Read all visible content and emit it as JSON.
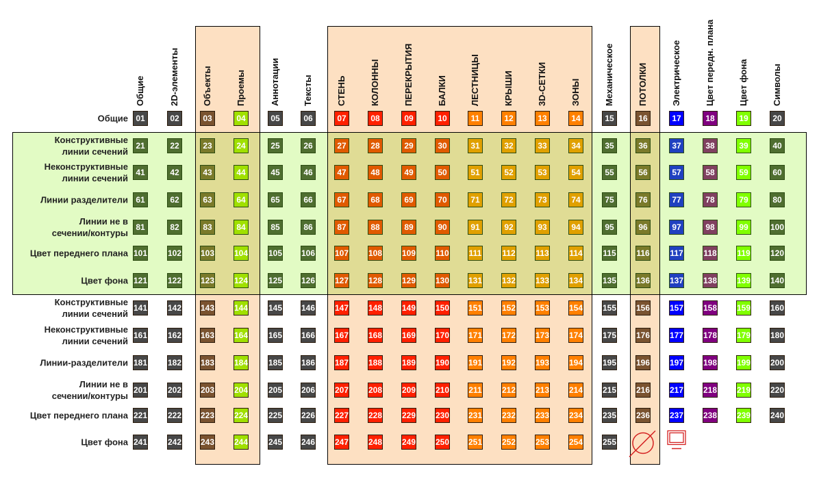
{
  "columns": [
    "Общие",
    "2D-элементы",
    "Объекты",
    "Проемы",
    "Аннотации",
    "Тексты",
    "СТЕНЬ",
    "КОЛОННЫ",
    "ПЕРЕКРЫТИЯ",
    "БАЛКИ",
    "ЛЕСТНИЦЫ",
    "КРЫШИ",
    "3D-СЕТКИ",
    "ЗОНЫ",
    "Механическое",
    "ПОТОЛКИ",
    "Электрическое",
    "Цвет передн. плана",
    "Цвет фона",
    "Символы"
  ],
  "groups": [
    {
      "columns": [
        "Объекты",
        "Проемы"
      ]
    },
    {
      "columns": [
        "СТЕНЬ",
        "КОЛОННЫ",
        "ПЕРЕКРЫТИЯ",
        "БАЛКИ",
        "ЛЕСТНИЦЫ",
        "КРЫШИ",
        "3D-СЕТКИ",
        "ЗОНЫ"
      ]
    },
    {
      "columns": [
        "ПОТОЛКИ"
      ]
    }
  ],
  "colors": {
    "group_bg": "#fde0c2",
    "zone_bg": "#e2fbc4",
    "normal": [
      "#474747",
      "#474747",
      "#7a5330",
      "#a0e000",
      "#474747",
      "#474747",
      "#ff2000",
      "#ff2000",
      "#ff2000",
      "#ff2000",
      "#ff8000",
      "#ff8000",
      "#ff8000",
      "#ff8000",
      "#474747",
      "#7a5330",
      "#0000ff",
      "#800080",
      "#80ff00",
      "#474747"
    ],
    "highlighted": [
      "#4f6e30",
      "#4f6e30",
      "#7a7a2a",
      "#a0e000",
      "#4f6e30",
      "#4f6e30",
      "#e05a00",
      "#e05a00",
      "#e05a00",
      "#e05a00",
      "#e0a000",
      "#e0a000",
      "#e0a000",
      "#e0a000",
      "#4f6e30",
      "#7a7a2a",
      "#2040c0",
      "#804060",
      "#80ff00",
      "#4f6e30"
    ]
  },
  "rows": [
    {
      "label": "Общие",
      "highlighted": false,
      "cells": [
        "01",
        "02",
        "03",
        "04",
        "05",
        "06",
        "07",
        "08",
        "09",
        "10",
        "11",
        "12",
        "13",
        "14",
        "15",
        "16",
        "17",
        "18",
        "19",
        "20"
      ]
    },
    {
      "label": "Конструктивные\nлинии сечений",
      "highlighted": true,
      "cells": [
        "21",
        "22",
        "23",
        "24",
        "25",
        "26",
        "27",
        "28",
        "29",
        "30",
        "31",
        "32",
        "33",
        "34",
        "35",
        "36",
        "37",
        "38",
        "39",
        "40"
      ]
    },
    {
      "label": "Неконструктивные\nлинии сечений",
      "highlighted": true,
      "cells": [
        "41",
        "42",
        "43",
        "44",
        "45",
        "46",
        "47",
        "48",
        "49",
        "50",
        "51",
        "52",
        "53",
        "54",
        "55",
        "56",
        "57",
        "58",
        "59",
        "60"
      ]
    },
    {
      "label": "Линии разделители",
      "highlighted": true,
      "cells": [
        "61",
        "62",
        "63",
        "64",
        "65",
        "66",
        "67",
        "68",
        "69",
        "70",
        "71",
        "72",
        "73",
        "74",
        "75",
        "76",
        "77",
        "78",
        "79",
        "80"
      ]
    },
    {
      "label": "Линии не в\nсечении/контуры",
      "highlighted": true,
      "cells": [
        "81",
        "82",
        "83",
        "84",
        "85",
        "86",
        "87",
        "88",
        "89",
        "90",
        "91",
        "92",
        "93",
        "94",
        "95",
        "96",
        "97",
        "98",
        "99",
        "100"
      ]
    },
    {
      "label": "Цвет переднего плана",
      "highlighted": true,
      "cells": [
        "101",
        "102",
        "103",
        "104",
        "105",
        "106",
        "107",
        "108",
        "109",
        "110",
        "111",
        "112",
        "113",
        "114",
        "115",
        "116",
        "117",
        "118",
        "119",
        "120"
      ]
    },
    {
      "label": "Цвет фона",
      "highlighted": true,
      "cells": [
        "121",
        "122",
        "123",
        "124",
        "125",
        "126",
        "127",
        "128",
        "129",
        "130",
        "131",
        "132",
        "133",
        "134",
        "135",
        "136",
        "137",
        "138",
        "139",
        "140"
      ]
    },
    {
      "label": "Конструктивные\nлинии сечений",
      "highlighted": false,
      "cells": [
        "141",
        "142",
        "143",
        "144",
        "145",
        "146",
        "147",
        "148",
        "149",
        "150",
        "151",
        "152",
        "153",
        "154",
        "155",
        "156",
        "157",
        "158",
        "159",
        "160"
      ]
    },
    {
      "label": "Неконструктивные\nлинии сечений",
      "highlighted": false,
      "cells": [
        "161",
        "162",
        "163",
        "164",
        "165",
        "166",
        "167",
        "168",
        "169",
        "170",
        "171",
        "172",
        "173",
        "174",
        "175",
        "176",
        "177",
        "178",
        "179",
        "180"
      ]
    },
    {
      "label": "Линии-разделители",
      "highlighted": false,
      "cells": [
        "181",
        "182",
        "183",
        "184",
        "185",
        "186",
        "187",
        "188",
        "189",
        "190",
        "191",
        "192",
        "193",
        "194",
        "195",
        "196",
        "197",
        "198",
        "199",
        "200"
      ]
    },
    {
      "label": "Линии не в\nсечении/контуры",
      "highlighted": false,
      "cells": [
        "201",
        "202",
        "203",
        "204",
        "205",
        "206",
        "207",
        "208",
        "209",
        "210",
        "211",
        "212",
        "213",
        "214",
        "215",
        "216",
        "217",
        "218",
        "219",
        "220"
      ]
    },
    {
      "label": "Цвет переднего плана",
      "highlighted": false,
      "cells": [
        "221",
        "222",
        "223",
        "224",
        "225",
        "226",
        "227",
        "228",
        "229",
        "230",
        "231",
        "232",
        "233",
        "234",
        "235",
        "236",
        "237",
        "238",
        "239",
        "240"
      ]
    },
    {
      "label": "Цвет фона",
      "highlighted": false,
      "cells": [
        "241",
        "242",
        "243",
        "244",
        "245",
        "246",
        "247",
        "248",
        "249",
        "250",
        "251",
        "252",
        "253",
        "254",
        "255"
      ],
      "icons": [
        {
          "column": "ПОТОЛКИ",
          "icon": "no-color-icon",
          "color": "#d42020"
        },
        {
          "column": "Электрическое",
          "icon": "monitor-icon",
          "color": "#d42020"
        }
      ]
    }
  ]
}
